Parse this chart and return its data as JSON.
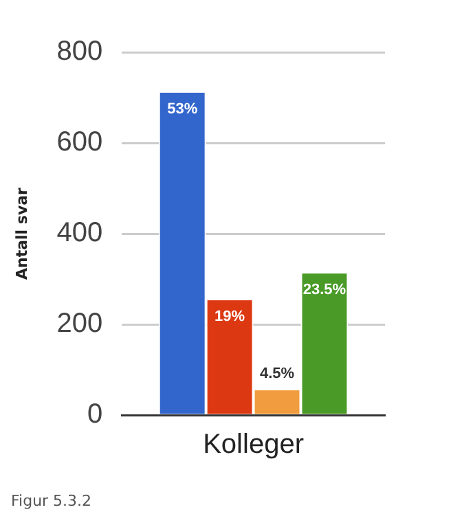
{
  "chart_data": {
    "type": "bar",
    "categories": [
      "Kolleger"
    ],
    "ylabel": "Antall svar",
    "series": [
      {
        "color": "#3366cc",
        "values": [
          711
        ]
      },
      {
        "color": "#dc3912",
        "values": [
          253
        ]
      },
      {
        "color": "#f19d3f",
        "values": [
          55
        ]
      },
      {
        "color": "#4a9a28",
        "values": [
          312
        ]
      }
    ],
    "ylim": [
      0,
      800
    ],
    "yticks": [
      0,
      200,
      400,
      600,
      800
    ],
    "grid": "y",
    "legend": false,
    "annotations": [
      "Figur 5.3.2",
      {
        "text": "53%",
        "y": 711
      },
      {
        "text": "19%",
        "y": 253
      },
      {
        "text": "4.5%",
        "y": 55
      },
      {
        "text": "23.5%",
        "y": 312
      }
    ]
  }
}
